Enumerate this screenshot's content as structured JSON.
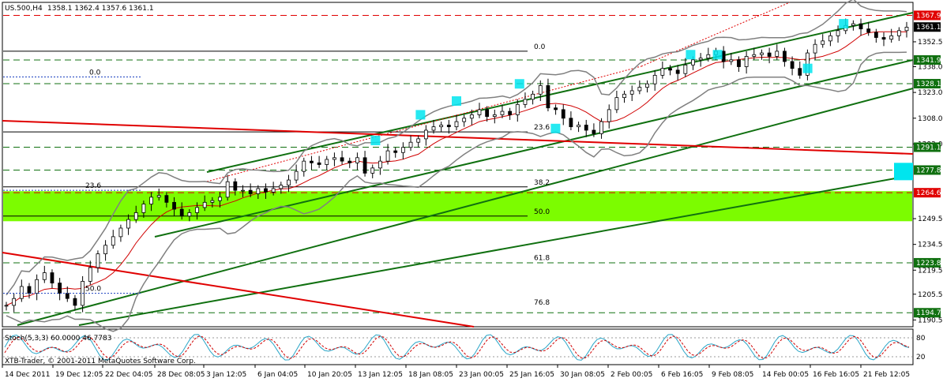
{
  "chart_data": {
    "type": "candlestick",
    "title": "US.500,H4",
    "ohlc_label": "1358.1 1362.4 1357.6 1361.1",
    "y_ticks": [
      "1352.5",
      "1338.0",
      "1323.0",
      "1308.0",
      "1293.0",
      "1277.8",
      "1264.6",
      "1249.5",
      "1234.5",
      "1219.5",
      "1205.5",
      "1190.5"
    ],
    "y_range": [
      1187,
      1375
    ],
    "current_price": "1361.1",
    "price_levels": [
      {
        "label": "1367.9",
        "value": 1367.9,
        "kind": "resistance",
        "color": "#e00000"
      },
      {
        "label": "1341.9",
        "value": 1341.9,
        "kind": "support",
        "color": "#00a000"
      },
      {
        "label": "1328.1",
        "value": 1328.1,
        "kind": "support",
        "color": "#00a000"
      },
      {
        "label": "1291.1",
        "value": 1291.1,
        "kind": "support",
        "color": "#00a000"
      },
      {
        "label": "1277.8",
        "value": 1277.8,
        "kind": "support",
        "color": "#00a000"
      },
      {
        "label": "1264.6",
        "value": 1264.6,
        "kind": "resistance",
        "color": "#e00000"
      },
      {
        "label": "1223.8",
        "value": 1223.8,
        "kind": "support",
        "color": "#00a000"
      },
      {
        "label": "1194.7",
        "value": 1194.7,
        "kind": "support",
        "color": "#00a000"
      }
    ],
    "fibo_labels": [
      {
        "label": "0.0",
        "value": 1347.0
      },
      {
        "label": "23.6",
        "value": 1300.0
      },
      {
        "label": "38.2",
        "value": 1268.0
      },
      {
        "label": "50.0",
        "value": 1251.0
      },
      {
        "label": "61.8",
        "value": 1224.0
      },
      {
        "label": "76.8",
        "value": 1198.0
      }
    ],
    "fibo_labels_2": [
      {
        "label": "0.0",
        "value": 1332.0
      },
      {
        "label": "23.6",
        "value": 1266.0
      },
      {
        "label": "50.0",
        "value": 1206.0
      }
    ],
    "green_zone": [
      1248.0,
      1265.5
    ],
    "close_series": [
      1199,
      1203,
      1210,
      1206,
      1214,
      1218,
      1212,
      1206,
      1203,
      1199,
      1213,
      1221,
      1229,
      1234,
      1239,
      1244,
      1249,
      1253,
      1258,
      1262,
      1263,
      1259,
      1255,
      1251,
      1253,
      1256,
      1259,
      1260,
      1262,
      1271,
      1266,
      1266,
      1264,
      1267,
      1265,
      1267,
      1269,
      1272,
      1277,
      1283,
      1282,
      1281,
      1284,
      1285,
      1283,
      1282,
      1285,
      1276,
      1279,
      1283,
      1289,
      1288,
      1291,
      1294,
      1296,
      1301,
      1303,
      1304,
      1303,
      1306,
      1308,
      1310,
      1313,
      1309,
      1310,
      1312,
      1310,
      1316,
      1319,
      1322,
      1327,
      1314,
      1313,
      1308,
      1303,
      1304,
      1301,
      1299,
      1306,
      1313,
      1320,
      1322,
      1324,
      1326,
      1328,
      1333,
      1337,
      1336,
      1334,
      1339,
      1342,
      1343,
      1345,
      1347,
      1341,
      1342,
      1338,
      1344,
      1345,
      1346,
      1344,
      1347,
      1341,
      1337,
      1333,
      1346,
      1351,
      1353,
      1356,
      1359,
      1362,
      1363,
      1360,
      1358,
      1355,
      1354,
      1356,
      1359,
      1361
    ],
    "stochastic": {
      "label": "Stoch(5,3,3) 60.0000 46.7783",
      "ticks": [
        "80",
        "20"
      ],
      "k_value": 60.0,
      "d_value": 46.7783
    },
    "x_ticks": [
      "14 Dec 2011",
      "19 Dec 12:05",
      "22 Dec 04:05",
      "28 Dec 08:05",
      "3 Jan 12:05",
      "6 Jan 04:05",
      "10 Jan 20:05",
      "13 Jan 12:05",
      "18 Jan 08:05",
      "23 Jan 00:05",
      "25 Jan 16:05",
      "30 Jan 08:05",
      "2 Feb 00:05",
      "6 Feb 16:05",
      "9 Feb 08:05",
      "14 Feb 00:05",
      "16 Feb 16:05",
      "21 Feb 12:05"
    ],
    "copyright": "XTB-Trader, © 2001-2011 MetaQuotes Software Corp."
  }
}
